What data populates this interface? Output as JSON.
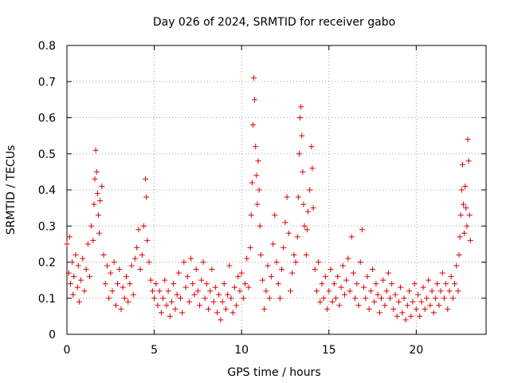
{
  "chart_data": {
    "type": "scatter",
    "title": "Day 026 of 2024, SRMTID for receiver gabo",
    "xlabel": "GPS time / hours",
    "ylabel": "SRMTID / TECUs",
    "xlim": [
      0,
      24
    ],
    "ylim": [
      0,
      0.8
    ],
    "x_ticks": [
      0,
      5,
      10,
      15,
      20
    ],
    "y_ticks": [
      0,
      0.1,
      0.2,
      0.3,
      0.4,
      0.5,
      0.6,
      0.7,
      0.8
    ],
    "grid": true,
    "marker": "plus",
    "series": [
      {
        "name": "SRMTID",
        "color": "#e00000",
        "points": [
          [
            0.0,
            0.25
          ],
          [
            0.1,
            0.17
          ],
          [
            0.15,
            0.27
          ],
          [
            0.2,
            0.14
          ],
          [
            0.3,
            0.2
          ],
          [
            0.35,
            0.11
          ],
          [
            0.4,
            0.16
          ],
          [
            0.5,
            0.22
          ],
          [
            0.6,
            0.13
          ],
          [
            0.65,
            0.19
          ],
          [
            0.7,
            0.09
          ],
          [
            0.8,
            0.15
          ],
          [
            0.9,
            0.21
          ],
          [
            1.0,
            0.12
          ],
          [
            1.1,
            0.18
          ],
          [
            1.2,
            0.25
          ],
          [
            1.3,
            0.16
          ],
          [
            1.4,
            0.3
          ],
          [
            1.5,
            0.26
          ],
          [
            1.55,
            0.36
          ],
          [
            1.6,
            0.43
          ],
          [
            1.65,
            0.51
          ],
          [
            1.7,
            0.45
          ],
          [
            1.75,
            0.39
          ],
          [
            1.8,
            0.33
          ],
          [
            1.85,
            0.28
          ],
          [
            1.9,
            0.37
          ],
          [
            2.0,
            0.41
          ],
          [
            2.1,
            0.22
          ],
          [
            2.2,
            0.14
          ],
          [
            2.3,
            0.19
          ],
          [
            2.4,
            0.1
          ],
          [
            2.5,
            0.17
          ],
          [
            2.6,
            0.12
          ],
          [
            2.7,
            0.2
          ],
          [
            2.8,
            0.08
          ],
          [
            2.9,
            0.14
          ],
          [
            3.0,
            0.18
          ],
          [
            3.1,
            0.07
          ],
          [
            3.2,
            0.13
          ],
          [
            3.3,
            0.1
          ],
          [
            3.4,
            0.16
          ],
          [
            3.5,
            0.09
          ],
          [
            3.6,
            0.14
          ],
          [
            3.7,
            0.19
          ],
          [
            3.8,
            0.11
          ],
          [
            3.9,
            0.21
          ],
          [
            4.0,
            0.24
          ],
          [
            4.1,
            0.29
          ],
          [
            4.2,
            0.18
          ],
          [
            4.3,
            0.22
          ],
          [
            4.4,
            0.3
          ],
          [
            4.5,
            0.43
          ],
          [
            4.55,
            0.38
          ],
          [
            4.6,
            0.26
          ],
          [
            4.7,
            0.2
          ],
          [
            4.8,
            0.15
          ],
          [
            4.9,
            0.12
          ],
          [
            5.0,
            0.1
          ],
          [
            5.1,
            0.14
          ],
          [
            5.2,
            0.08
          ],
          [
            5.3,
            0.12
          ],
          [
            5.4,
            0.06
          ],
          [
            5.5,
            0.1
          ],
          [
            5.6,
            0.15
          ],
          [
            5.7,
            0.08
          ],
          [
            5.8,
            0.12
          ],
          [
            5.9,
            0.05
          ],
          [
            6.0,
            0.09
          ],
          [
            6.1,
            0.14
          ],
          [
            6.2,
            0.07
          ],
          [
            6.3,
            0.11
          ],
          [
            6.4,
            0.17
          ],
          [
            6.5,
            0.1
          ],
          [
            6.6,
            0.06
          ],
          [
            6.7,
            0.2
          ],
          [
            6.8,
            0.13
          ],
          [
            6.9,
            0.16
          ],
          [
            7.0,
            0.09
          ],
          [
            7.1,
            0.21
          ],
          [
            7.2,
            0.14
          ],
          [
            7.3,
            0.11
          ],
          [
            7.4,
            0.18
          ],
          [
            7.5,
            0.12
          ],
          [
            7.6,
            0.08
          ],
          [
            7.7,
            0.15
          ],
          [
            7.8,
            0.2
          ],
          [
            7.9,
            0.1
          ],
          [
            8.0,
            0.14
          ],
          [
            8.1,
            0.07
          ],
          [
            8.2,
            0.12
          ],
          [
            8.3,
            0.18
          ],
          [
            8.4,
            0.09
          ],
          [
            8.5,
            0.13
          ],
          [
            8.6,
            0.06
          ],
          [
            8.7,
            0.11
          ],
          [
            8.8,
            0.04
          ],
          [
            8.9,
            0.09
          ],
          [
            9.0,
            0.14
          ],
          [
            9.1,
            0.07
          ],
          [
            9.2,
            0.11
          ],
          [
            9.3,
            0.19
          ],
          [
            9.4,
            0.1
          ],
          [
            9.5,
            0.06
          ],
          [
            9.6,
            0.13
          ],
          [
            9.7,
            0.08
          ],
          [
            9.8,
            0.16
          ],
          [
            9.9,
            0.12
          ],
          [
            10.0,
            0.17
          ],
          [
            10.1,
            0.1
          ],
          [
            10.2,
            0.14
          ],
          [
            10.3,
            0.21
          ],
          [
            10.4,
            0.13
          ],
          [
            10.5,
            0.24
          ],
          [
            10.55,
            0.33
          ],
          [
            10.6,
            0.42
          ],
          [
            10.65,
            0.58
          ],
          [
            10.7,
            0.71
          ],
          [
            10.75,
            0.65
          ],
          [
            10.8,
            0.52
          ],
          [
            10.85,
            0.44
          ],
          [
            10.9,
            0.36
          ],
          [
            10.95,
            0.48
          ],
          [
            11.0,
            0.4
          ],
          [
            11.05,
            0.3
          ],
          [
            11.1,
            0.22
          ],
          [
            11.2,
            0.15
          ],
          [
            11.3,
            0.07
          ],
          [
            11.4,
            0.12
          ],
          [
            11.5,
            0.19
          ],
          [
            11.6,
            0.1
          ],
          [
            11.7,
            0.16
          ],
          [
            11.8,
            0.25
          ],
          [
            11.9,
            0.33
          ],
          [
            12.0,
            0.2
          ],
          [
            12.1,
            0.14
          ],
          [
            12.2,
            0.1
          ],
          [
            12.3,
            0.18
          ],
          [
            12.4,
            0.24
          ],
          [
            12.5,
            0.31
          ],
          [
            12.6,
            0.38
          ],
          [
            12.7,
            0.28
          ],
          [
            12.8,
            0.12
          ],
          [
            12.9,
            0.17
          ],
          [
            13.0,
            0.22
          ],
          [
            13.1,
            0.2
          ],
          [
            13.2,
            0.27
          ],
          [
            13.25,
            0.38
          ],
          [
            13.3,
            0.5
          ],
          [
            13.35,
            0.6
          ],
          [
            13.4,
            0.63
          ],
          [
            13.45,
            0.55
          ],
          [
            13.5,
            0.45
          ],
          [
            13.55,
            0.36
          ],
          [
            13.6,
            0.3
          ],
          [
            13.7,
            0.22
          ],
          [
            13.75,
            0.29
          ],
          [
            13.8,
            0.34
          ],
          [
            13.9,
            0.4
          ],
          [
            14.0,
            0.52
          ],
          [
            14.05,
            0.46
          ],
          [
            14.1,
            0.35
          ],
          [
            14.2,
            0.18
          ],
          [
            14.3,
            0.12
          ],
          [
            14.4,
            0.2
          ],
          [
            14.5,
            0.09
          ],
          [
            14.6,
            0.14
          ],
          [
            14.7,
            0.1
          ],
          [
            14.8,
            0.16
          ],
          [
            14.9,
            0.07
          ],
          [
            15.0,
            0.12
          ],
          [
            15.1,
            0.18
          ],
          [
            15.2,
            0.09
          ],
          [
            15.3,
            0.14
          ],
          [
            15.4,
            0.1
          ],
          [
            15.5,
            0.16
          ],
          [
            15.6,
            0.08
          ],
          [
            15.7,
            0.13
          ],
          [
            15.8,
            0.19
          ],
          [
            15.9,
            0.11
          ],
          [
            16.0,
            0.15
          ],
          [
            16.1,
            0.21
          ],
          [
            16.2,
            0.12
          ],
          [
            16.3,
            0.27
          ],
          [
            16.4,
            0.17
          ],
          [
            16.5,
            0.1
          ],
          [
            16.6,
            0.14
          ],
          [
            16.7,
            0.08
          ],
          [
            16.8,
            0.2
          ],
          [
            16.9,
            0.29
          ],
          [
            17.0,
            0.13
          ],
          [
            17.1,
            0.1
          ],
          [
            17.2,
            0.16
          ],
          [
            17.3,
            0.07
          ],
          [
            17.4,
            0.12
          ],
          [
            17.5,
            0.18
          ],
          [
            17.6,
            0.09
          ],
          [
            17.7,
            0.14
          ],
          [
            17.8,
            0.11
          ],
          [
            17.9,
            0.06
          ],
          [
            18.0,
            0.1
          ],
          [
            18.1,
            0.15
          ],
          [
            18.2,
            0.08
          ],
          [
            18.3,
            0.12
          ],
          [
            18.4,
            0.17
          ],
          [
            18.5,
            0.1
          ],
          [
            18.6,
            0.14
          ],
          [
            18.7,
            0.07
          ],
          [
            18.8,
            0.11
          ],
          [
            18.9,
            0.05
          ],
          [
            19.0,
            0.09
          ],
          [
            19.1,
            0.13
          ],
          [
            19.2,
            0.06
          ],
          [
            19.3,
            0.1
          ],
          [
            19.4,
            0.04
          ],
          [
            19.5,
            0.08
          ],
          [
            19.6,
            0.12
          ],
          [
            19.7,
            0.05
          ],
          [
            19.8,
            0.09
          ],
          [
            19.9,
            0.14
          ],
          [
            20.0,
            0.07
          ],
          [
            20.1,
            0.11
          ],
          [
            20.2,
            0.05
          ],
          [
            20.3,
            0.09
          ],
          [
            20.4,
            0.13
          ],
          [
            20.5,
            0.07
          ],
          [
            20.6,
            0.1
          ],
          [
            20.7,
            0.15
          ],
          [
            20.8,
            0.08
          ],
          [
            20.9,
            0.12
          ],
          [
            21.0,
            0.06
          ],
          [
            21.1,
            0.1
          ],
          [
            21.2,
            0.14
          ],
          [
            21.3,
            0.08
          ],
          [
            21.4,
            0.12
          ],
          [
            21.5,
            0.17
          ],
          [
            21.6,
            0.1
          ],
          [
            21.7,
            0.14
          ],
          [
            21.8,
            0.07
          ],
          [
            21.9,
            0.12
          ],
          [
            22.0,
            0.16
          ],
          [
            22.1,
            0.1
          ],
          [
            22.2,
            0.14
          ],
          [
            22.3,
            0.19
          ],
          [
            22.4,
            0.12
          ],
          [
            22.45,
            0.22
          ],
          [
            22.5,
            0.27
          ],
          [
            22.55,
            0.33
          ],
          [
            22.6,
            0.4
          ],
          [
            22.65,
            0.47
          ],
          [
            22.7,
            0.36
          ],
          [
            22.75,
            0.28
          ],
          [
            22.8,
            0.41
          ],
          [
            22.85,
            0.35
          ],
          [
            22.9,
            0.3
          ],
          [
            22.95,
            0.54
          ],
          [
            23.0,
            0.48
          ],
          [
            23.05,
            0.33
          ],
          [
            23.1,
            0.26
          ]
        ]
      }
    ]
  }
}
